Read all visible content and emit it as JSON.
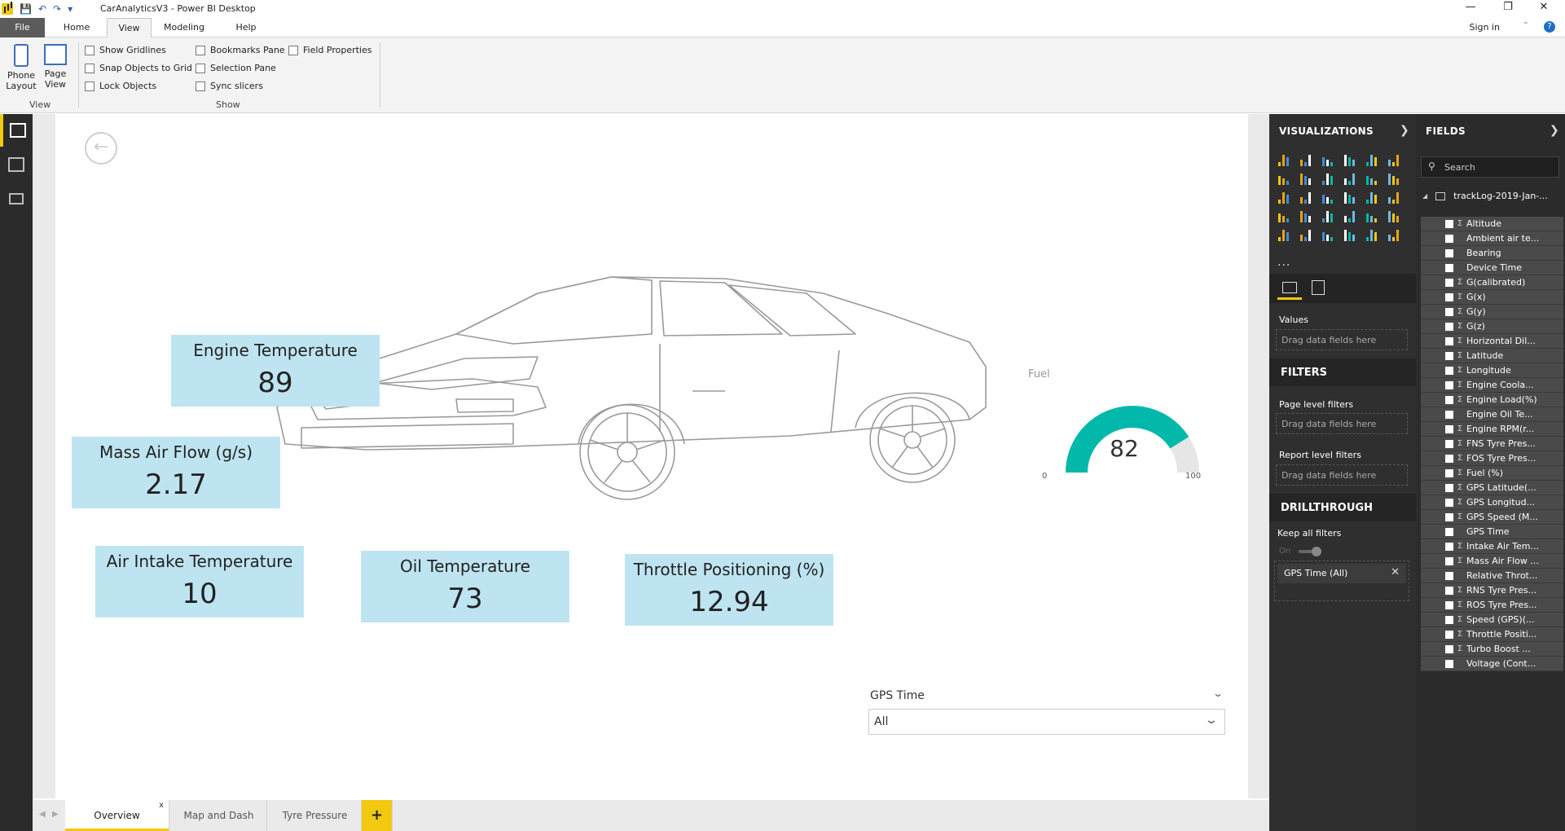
{
  "app": {
    "title": "CarAnalyticsV3 - Power BI Desktop",
    "sign_in": "Sign in"
  },
  "ribbon": {
    "tabs": [
      "File",
      "Home",
      "View",
      "Modeling",
      "Help"
    ],
    "active_tab": "View",
    "phone_layout": "Phone Layout",
    "page_view": "Page View",
    "view_group": "View",
    "show_group": "Show",
    "checkboxes": {
      "show_gridlines": "Show Gridlines",
      "snap_objects": "Snap Objects to Grid",
      "lock_objects": "Lock Objects",
      "bookmarks_pane": "Bookmarks Pane",
      "selection_pane": "Selection Pane",
      "sync_slicers": "Sync slicers",
      "field_properties": "Field Properties"
    }
  },
  "report": {
    "cards": {
      "engine_temp": {
        "title": "Engine Temperature",
        "value": "89"
      },
      "mass_air_flow": {
        "title": "Mass Air Flow (g/s)",
        "value": "2.17"
      },
      "air_intake": {
        "title": "Air Intake Temperature",
        "value": "10"
      },
      "oil_temp": {
        "title": "Oil Temperature",
        "value": "73"
      },
      "throttle": {
        "title": "Throttle Positioning (%)",
        "value": "12.94"
      }
    },
    "gauge": {
      "title": "Fuel",
      "value": "82",
      "min": "0",
      "max": "100",
      "fill_fraction": 0.82,
      "color": "#01b8aa"
    },
    "slicer": {
      "title": "GPS Time",
      "value": "All"
    }
  },
  "page_tabs": {
    "overview": "Overview",
    "map": "Map and Dash",
    "tyre": "Tyre Pressure",
    "add": "+",
    "close": "x"
  },
  "visualizations": {
    "header": "VISUALIZATIONS",
    "more": "...",
    "values_label": "Values",
    "drag_here": "Drag data fields here",
    "filters_header": "FILTERS",
    "page_filters": "Page level filters",
    "report_filters": "Report level filters",
    "drillthrough_header": "DRILLTHROUGH",
    "keep_filters": "Keep all filters",
    "toggle_state": "On",
    "filter_pill": "GPS Time (All)"
  },
  "fields": {
    "header": "FIELDS",
    "search_placeholder": "Search",
    "table_name": "trackLog-2019-Jan-...",
    "items": [
      {
        "name": "Altitude",
        "sigma": true
      },
      {
        "name": "Ambient air te...",
        "sigma": false
      },
      {
        "name": "Bearing",
        "sigma": false
      },
      {
        "name": "Device Time",
        "sigma": false
      },
      {
        "name": "G(calibrated)",
        "sigma": true
      },
      {
        "name": "G(x)",
        "sigma": true
      },
      {
        "name": "G(y)",
        "sigma": true
      },
      {
        "name": "G(z)",
        "sigma": true
      },
      {
        "name": "Horizontal Dil...",
        "sigma": true
      },
      {
        "name": "Latitude",
        "sigma": true
      },
      {
        "name": "Longitude",
        "sigma": true
      },
      {
        "name": "Engine Coola...",
        "sigma": true
      },
      {
        "name": "Engine Load(%)",
        "sigma": true
      },
      {
        "name": "Engine Oil Te...",
        "sigma": false
      },
      {
        "name": "Engine RPM(r...",
        "sigma": true
      },
      {
        "name": "FNS Tyre Pres...",
        "sigma": true
      },
      {
        "name": "FOS Tyre Pres...",
        "sigma": true
      },
      {
        "name": "Fuel (%)",
        "sigma": true
      },
      {
        "name": "GPS Latitude(...",
        "sigma": true
      },
      {
        "name": "GPS Longitud...",
        "sigma": true
      },
      {
        "name": "GPS Speed (M...",
        "sigma": true
      },
      {
        "name": "GPS Time",
        "sigma": false
      },
      {
        "name": "Intake Air Tem...",
        "sigma": true
      },
      {
        "name": "Mass Air Flow ...",
        "sigma": true
      },
      {
        "name": "Relative Throt...",
        "sigma": false
      },
      {
        "name": "RNS Tyre Pres...",
        "sigma": true
      },
      {
        "name": "ROS Tyre Pres...",
        "sigma": true
      },
      {
        "name": "Speed (GPS)(...",
        "sigma": true
      },
      {
        "name": "Throttle Positi...",
        "sigma": true
      },
      {
        "name": "Turbo Boost ...",
        "sigma": true
      },
      {
        "name": "Voltage (Cont...",
        "sigma": false
      }
    ]
  },
  "colors": {
    "accent": "#f2c811",
    "card_bg": "#bfe4f1",
    "gauge_fill": "#01b8aa"
  }
}
